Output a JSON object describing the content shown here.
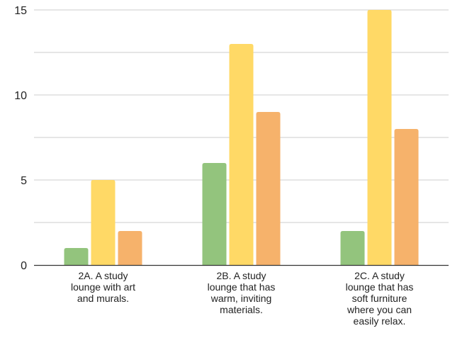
{
  "chart_data": {
    "type": "bar",
    "categories": [
      "2A. A study lounge with art and murals.",
      "2B. A study lounge that has warm, inviting materials.",
      "2C. A study lounge that has soft furniture where you can easily relax."
    ],
    "category_lines": [
      [
        "2A. A study",
        "lounge with art",
        "and murals."
      ],
      [
        "2B. A study",
        "lounge that has",
        "warm, inviting",
        "materials."
      ],
      [
        "2C. A study",
        "lounge that has",
        "soft furniture",
        "where you can",
        "easily relax."
      ]
    ],
    "series": [
      {
        "values": [
          1,
          6,
          2
        ],
        "color": "#93c47d"
      },
      {
        "values": [
          5,
          13,
          15
        ],
        "color": "#ffd966"
      },
      {
        "values": [
          2,
          9,
          8
        ],
        "color": "#f6b26b"
      }
    ],
    "yticks": [
      "0",
      "5",
      "10",
      "15"
    ],
    "ylim": [
      0,
      15
    ],
    "grid": true,
    "legend": "none"
  }
}
